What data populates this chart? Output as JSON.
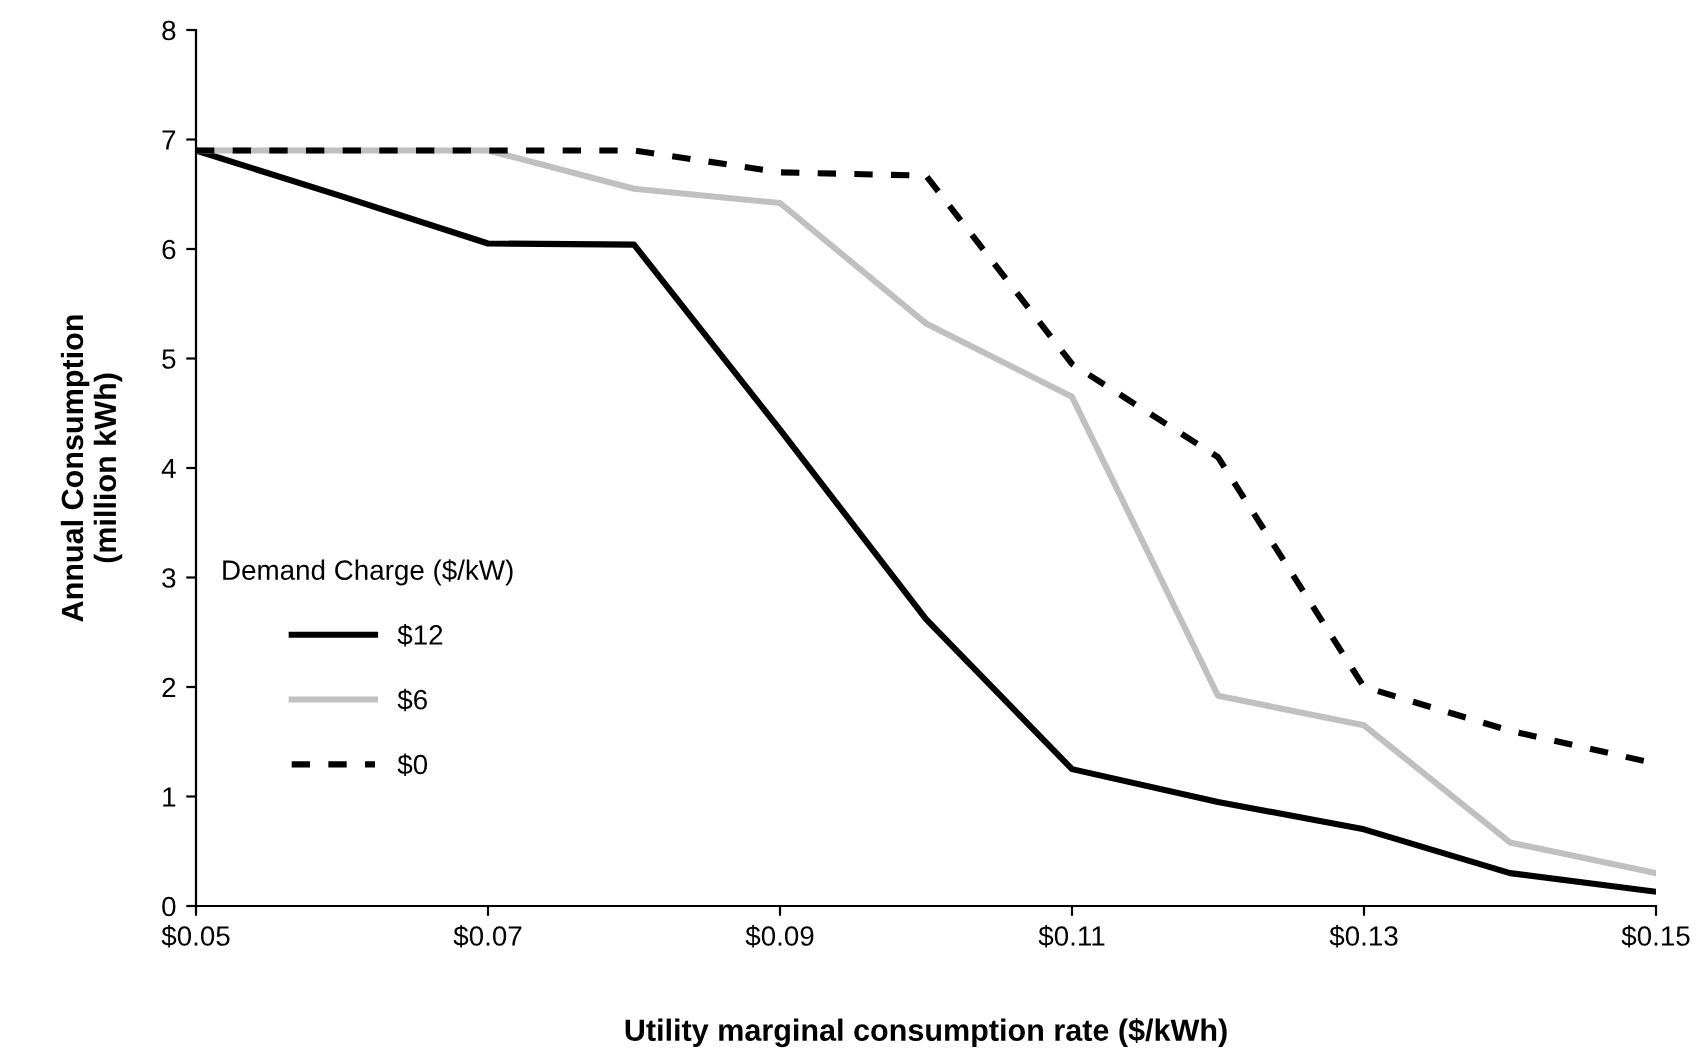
{
  "chart_data": {
    "type": "line",
    "xlabel": "Utility marginal consumption rate ($/kWh)",
    "ylabel": "Annual Consumption\n(million kWh)",
    "legend_title": "Demand Charge ($/kW)",
    "legend": "left",
    "x": [
      0.05,
      0.06,
      0.07,
      0.08,
      0.09,
      0.1,
      0.11,
      0.12,
      0.13,
      0.14,
      0.15
    ],
    "series": [
      {
        "name": "$12",
        "color": "#000000",
        "line_style": "solid",
        "values": [
          6.9,
          6.48,
          6.05,
          6.04,
          4.35,
          2.62,
          1.25,
          0.95,
          0.7,
          0.3,
          0.13
        ]
      },
      {
        "name": "$6",
        "color": "#c0c0c0",
        "line_style": "solid",
        "values": [
          6.9,
          6.9,
          6.9,
          6.55,
          6.42,
          5.32,
          4.65,
          1.92,
          1.65,
          0.58,
          0.3
        ]
      },
      {
        "name": "$0",
        "color": "#000000",
        "line_style": "dashed",
        "values": [
          6.9,
          6.9,
          6.9,
          6.9,
          6.7,
          6.67,
          4.95,
          4.1,
          2.0,
          1.6,
          1.3
        ]
      }
    ],
    "xlim": [
      0.05,
      0.15
    ],
    "xticks": [
      {
        "value": 0.05,
        "label": "$0.05"
      },
      {
        "value": 0.07,
        "label": "$0.07"
      },
      {
        "value": 0.09,
        "label": "$0.09"
      },
      {
        "value": 0.11,
        "label": "$0.11"
      },
      {
        "value": 0.13,
        "label": "$0.13"
      },
      {
        "value": 0.15,
        "label": "$0.15"
      }
    ],
    "ylim": [
      0,
      8
    ],
    "yticks": [
      0,
      1,
      2,
      3,
      4,
      5,
      6,
      7,
      8
    ],
    "grid": false
  }
}
